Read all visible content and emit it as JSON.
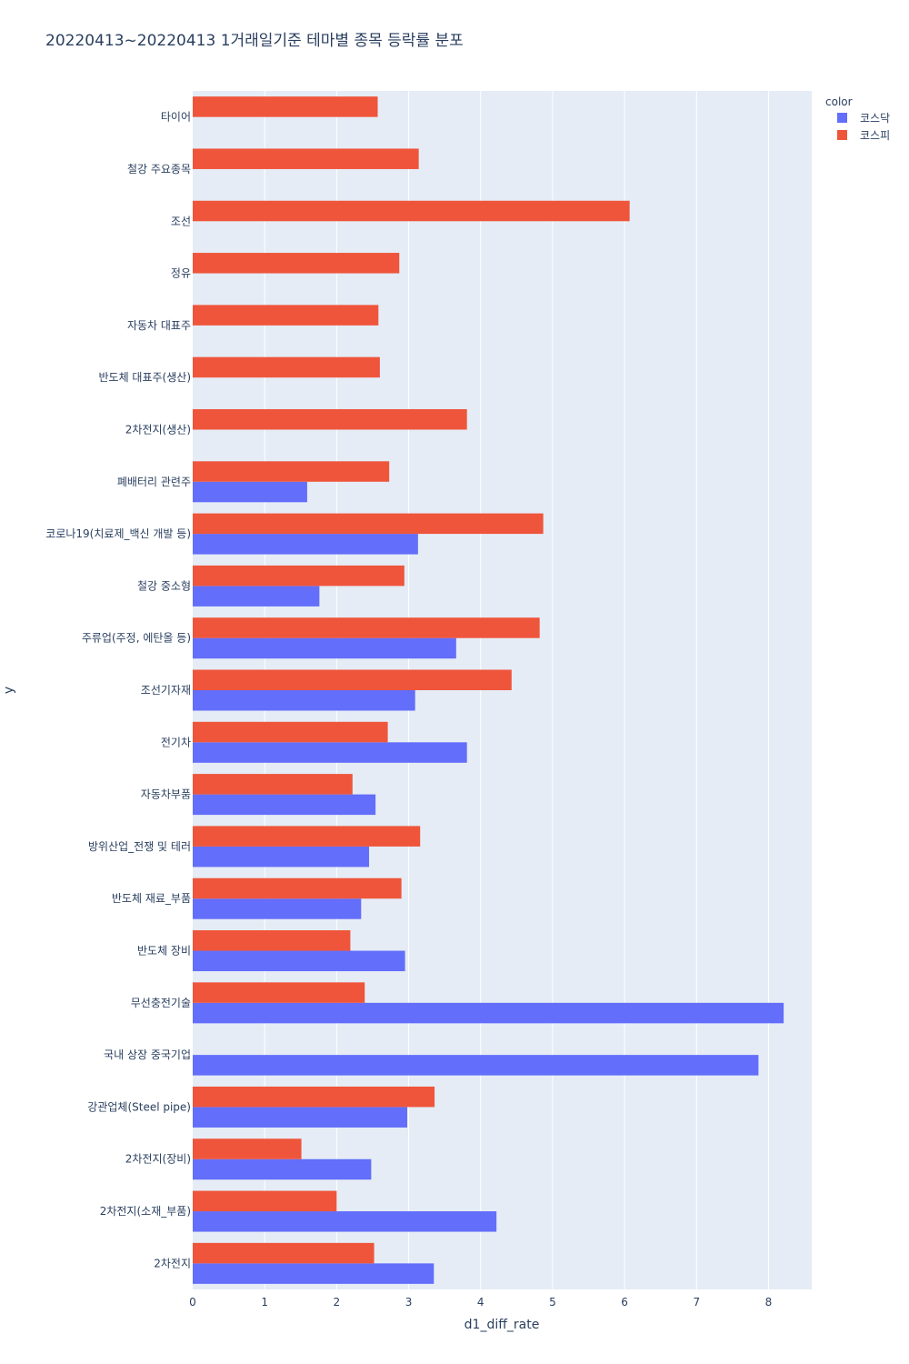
{
  "chart_data": {
    "type": "bar",
    "orientation": "horizontal",
    "barmode": "group",
    "title": "20220413~20220413 1거래일기준 테마별 종목 등락률 분포",
    "xlabel": "d1_diff_rate",
    "ylabel": "y",
    "xlim": [
      0,
      8.6
    ],
    "x_ticks": [
      0,
      1,
      2,
      3,
      4,
      5,
      6,
      7,
      8
    ],
    "grid": true,
    "legend_title": "color",
    "legend_position": "top-right",
    "categories": [
      "타이어",
      "철강 주요종목",
      "조선",
      "정유",
      "자동차 대표주",
      "반도체 대표주(생산)",
      "2차전지(생산)",
      "폐배터리 관련주",
      "코로나19(치료제_백신 개발 등)",
      "철강 중소형",
      "주류업(주정, 에탄올 등)",
      "조선기자재",
      "전기차",
      "자동차부품",
      "방위산업_전쟁 및 테러",
      "반도체 재료_부품",
      "반도체 장비",
      "무선충전기술",
      "국내 상장 중국기업",
      "강관업체(Steel pipe)",
      "2차전지(장비)",
      "2차전지(소재_부품)",
      "2차전지"
    ],
    "series": [
      {
        "name": "코스닥",
        "color": "#636efa",
        "values": [
          null,
          null,
          null,
          null,
          null,
          null,
          null,
          1.59,
          3.13,
          1.76,
          3.66,
          3.09,
          3.81,
          2.54,
          2.45,
          2.34,
          2.95,
          8.21,
          7.86,
          2.98,
          2.48,
          4.22,
          3.35
        ]
      },
      {
        "name": "코스피",
        "color": "#ef553b",
        "values": [
          2.57,
          3.14,
          6.07,
          2.87,
          2.58,
          2.6,
          3.81,
          2.73,
          4.87,
          2.94,
          4.82,
          4.43,
          2.71,
          2.22,
          3.16,
          2.9,
          2.19,
          2.39,
          null,
          3.36,
          1.51,
          2.0,
          2.52
        ]
      }
    ]
  }
}
